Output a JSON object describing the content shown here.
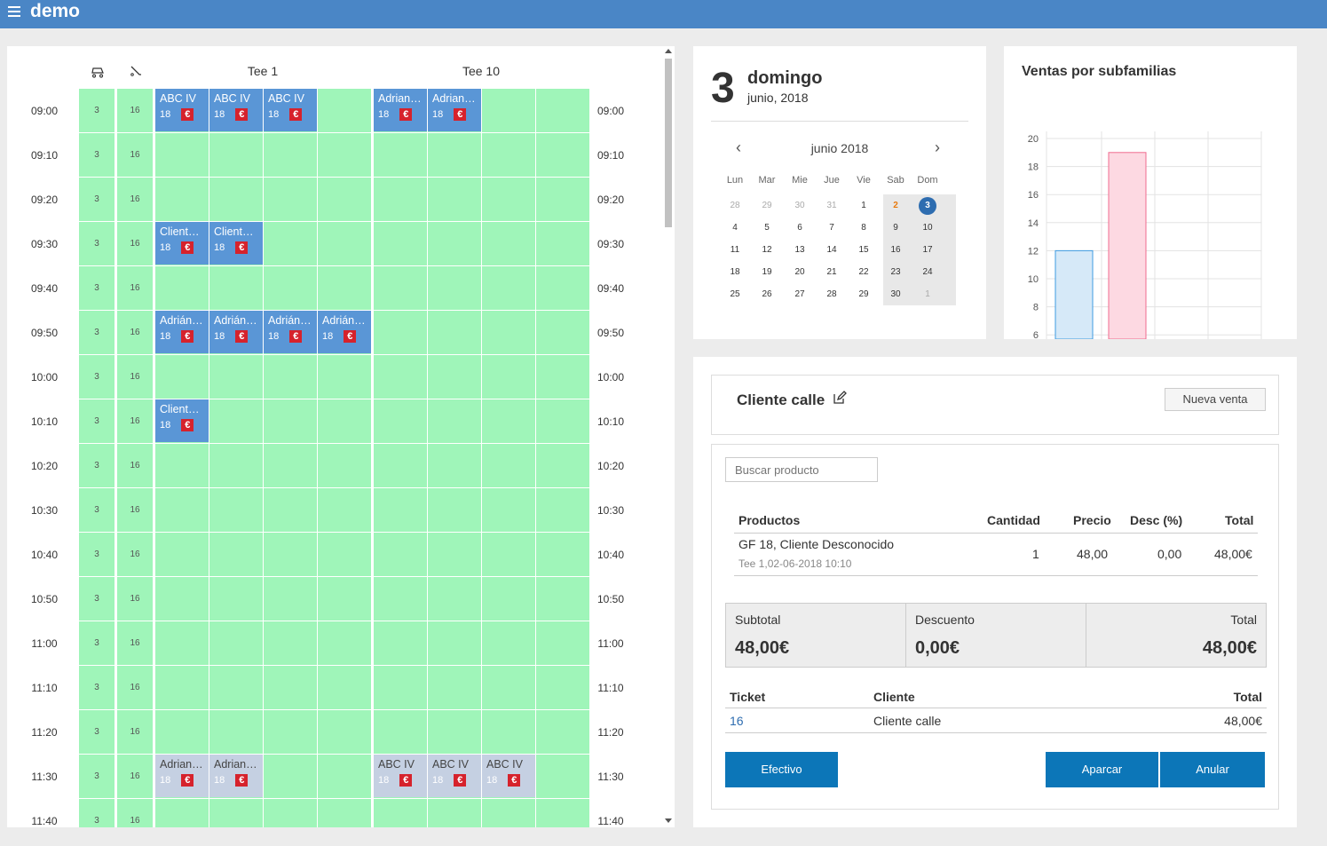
{
  "app": {
    "title": "demo"
  },
  "schedule": {
    "tees": [
      "Tee 1",
      "Tee 10"
    ],
    "times": [
      "09:00",
      "09:10",
      "09:20",
      "09:30",
      "09:40",
      "09:50",
      "10:00",
      "10:10",
      "10:20",
      "10:30",
      "10:40",
      "10:50",
      "11:00",
      "11:10",
      "11:20",
      "11:30",
      "11:40"
    ],
    "buggies": "3",
    "trolleys": "16",
    "bookings": [
      {
        "row": 0,
        "col": 0,
        "name": "ABC IV",
        "num": "18",
        "style": "blue"
      },
      {
        "row": 0,
        "col": 1,
        "name": "ABC IV",
        "num": "18",
        "style": "blue"
      },
      {
        "row": 0,
        "col": 2,
        "name": "ABC IV",
        "num": "18",
        "style": "blue"
      },
      {
        "row": 0,
        "col": 4,
        "name": "Adriano Dueño",
        "num": "18",
        "style": "blue"
      },
      {
        "row": 0,
        "col": 5,
        "name": "Adriano Dueño",
        "num": "18",
        "style": "blue"
      },
      {
        "row": 3,
        "col": 0,
        "name": "Cliente calle",
        "num": "18",
        "style": "blue"
      },
      {
        "row": 3,
        "col": 1,
        "name": "Cliente calle",
        "num": "18",
        "style": "blue"
      },
      {
        "row": 5,
        "col": 0,
        "name": "Adrián Dueño",
        "num": "18",
        "style": "blue"
      },
      {
        "row": 5,
        "col": 1,
        "name": "Adrián Dueño",
        "num": "18",
        "style": "blue"
      },
      {
        "row": 5,
        "col": 2,
        "name": "Adrián Dueño",
        "num": "18",
        "style": "blue"
      },
      {
        "row": 5,
        "col": 3,
        "name": "Adrián Dueño",
        "num": "18",
        "style": "blue"
      },
      {
        "row": 7,
        "col": 0,
        "name": "Cliente calle",
        "num": "18",
        "style": "blue"
      },
      {
        "row": 15,
        "col": 0,
        "name": "Adriano Dueño",
        "num": "18",
        "style": "gray"
      },
      {
        "row": 15,
        "col": 1,
        "name": "Adriano Dueño",
        "num": "18",
        "style": "gray"
      },
      {
        "row": 15,
        "col": 4,
        "name": "ABC IV",
        "num": "18",
        "style": "gray"
      },
      {
        "row": 15,
        "col": 5,
        "name": "ABC IV",
        "num": "18",
        "style": "gray"
      },
      {
        "row": 15,
        "col": 6,
        "name": "ABC IV",
        "num": "18",
        "style": "gray"
      }
    ],
    "euro_symbol": "€"
  },
  "calendar": {
    "day_number": "3",
    "day_name": "domingo",
    "month_year": "junio, 2018",
    "month_title": "junio 2018",
    "prev": "‹",
    "next": "›",
    "weekdays": [
      "Lun",
      "Mar",
      "Mie",
      "Jue",
      "Vie",
      "Sab",
      "Dom"
    ],
    "weeks": [
      [
        "28",
        "29",
        "30",
        "31",
        "1",
        "2",
        "3"
      ],
      [
        "4",
        "5",
        "6",
        "7",
        "8",
        "9",
        "10"
      ],
      [
        "11",
        "12",
        "13",
        "14",
        "15",
        "16",
        "17"
      ],
      [
        "18",
        "19",
        "20",
        "21",
        "22",
        "23",
        "24"
      ],
      [
        "25",
        "26",
        "27",
        "28",
        "29",
        "30",
        "1"
      ]
    ]
  },
  "chart_title": "Ventas por subfamilias",
  "chart_data": {
    "type": "bar",
    "title": "Ventas por subfamilias",
    "categories": [
      "",
      ""
    ],
    "values": [
      12,
      19
    ],
    "colors": [
      "#3f9be0",
      "#f06b8f"
    ],
    "fills": [
      "#d6e9f8",
      "#fdd9e2"
    ],
    "y_ticks": [
      "20",
      "18",
      "16",
      "14",
      "12",
      "10",
      "8",
      "6"
    ],
    "ylim_visible": [
      6,
      20
    ],
    "grid": true
  },
  "sale": {
    "customer": "Cliente calle",
    "new_sale": "Nueva venta",
    "search_placeholder": "Buscar producto",
    "headers": {
      "product": "Productos",
      "qty": "Cantidad",
      "price": "Precio",
      "discount": "Desc (%)",
      "total": "Total"
    },
    "line": {
      "product": "GF 18, Cliente Desconocido",
      "detail": "Tee 1,02-06-2018 10:10",
      "qty": "1",
      "price": "48,00",
      "discount": "0,00",
      "total": "48,00€"
    },
    "subtotal_label": "Subtotal",
    "subtotal": "48,00€",
    "discount_label": "Descuento",
    "discount": "0,00€",
    "total_label": "Total",
    "total": "48,00€",
    "ticket_headers": {
      "ticket": "Ticket",
      "client": "Cliente",
      "total": "Total"
    },
    "ticket": {
      "id": "16",
      "client": "Cliente calle",
      "total": "48,00€"
    },
    "buttons": {
      "cash": "Efectivo",
      "park": "Aparcar",
      "cancel": "Anular"
    }
  }
}
